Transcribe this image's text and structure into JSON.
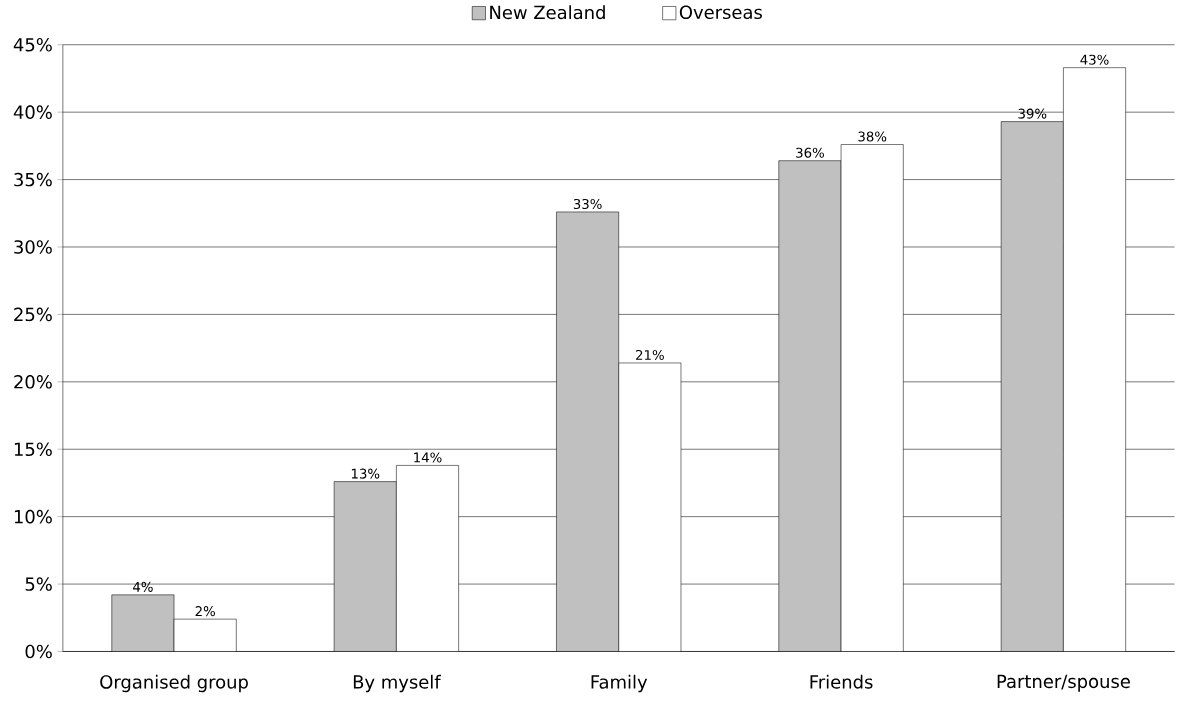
{
  "chart_data": {
    "type": "bar",
    "categories": [
      "Organised group",
      "By myself",
      "Family",
      "Friends",
      "Partner/spouse"
    ],
    "series": [
      {
        "name": "New Zealand",
        "color": "#c0c0c0",
        "values": [
          4.2,
          12.6,
          32.6,
          36.4,
          39.3
        ],
        "value_labels": [
          "4%",
          "13%",
          "33%",
          "36%",
          "39%"
        ]
      },
      {
        "name": "Overseas",
        "color": "#ffffff",
        "values": [
          2.4,
          13.8,
          21.4,
          37.6,
          43.3
        ],
        "value_labels": [
          "2%",
          "14%",
          "21%",
          "38%",
          "43%"
        ]
      }
    ],
    "ylim": [
      0,
      45
    ],
    "yticks": [
      {
        "value": 0,
        "label": "0%"
      },
      {
        "value": 5,
        "label": "5%"
      },
      {
        "value": 10,
        "label": "10%"
      },
      {
        "value": 15,
        "label": "15%"
      },
      {
        "value": 20,
        "label": "20%"
      },
      {
        "value": 25,
        "label": "25%"
      },
      {
        "value": 30,
        "label": "30%"
      },
      {
        "value": 35,
        "label": "35%"
      },
      {
        "value": 40,
        "label": "40%"
      },
      {
        "value": 45,
        "label": "45%"
      }
    ],
    "grid": "y",
    "legend": "top"
  }
}
